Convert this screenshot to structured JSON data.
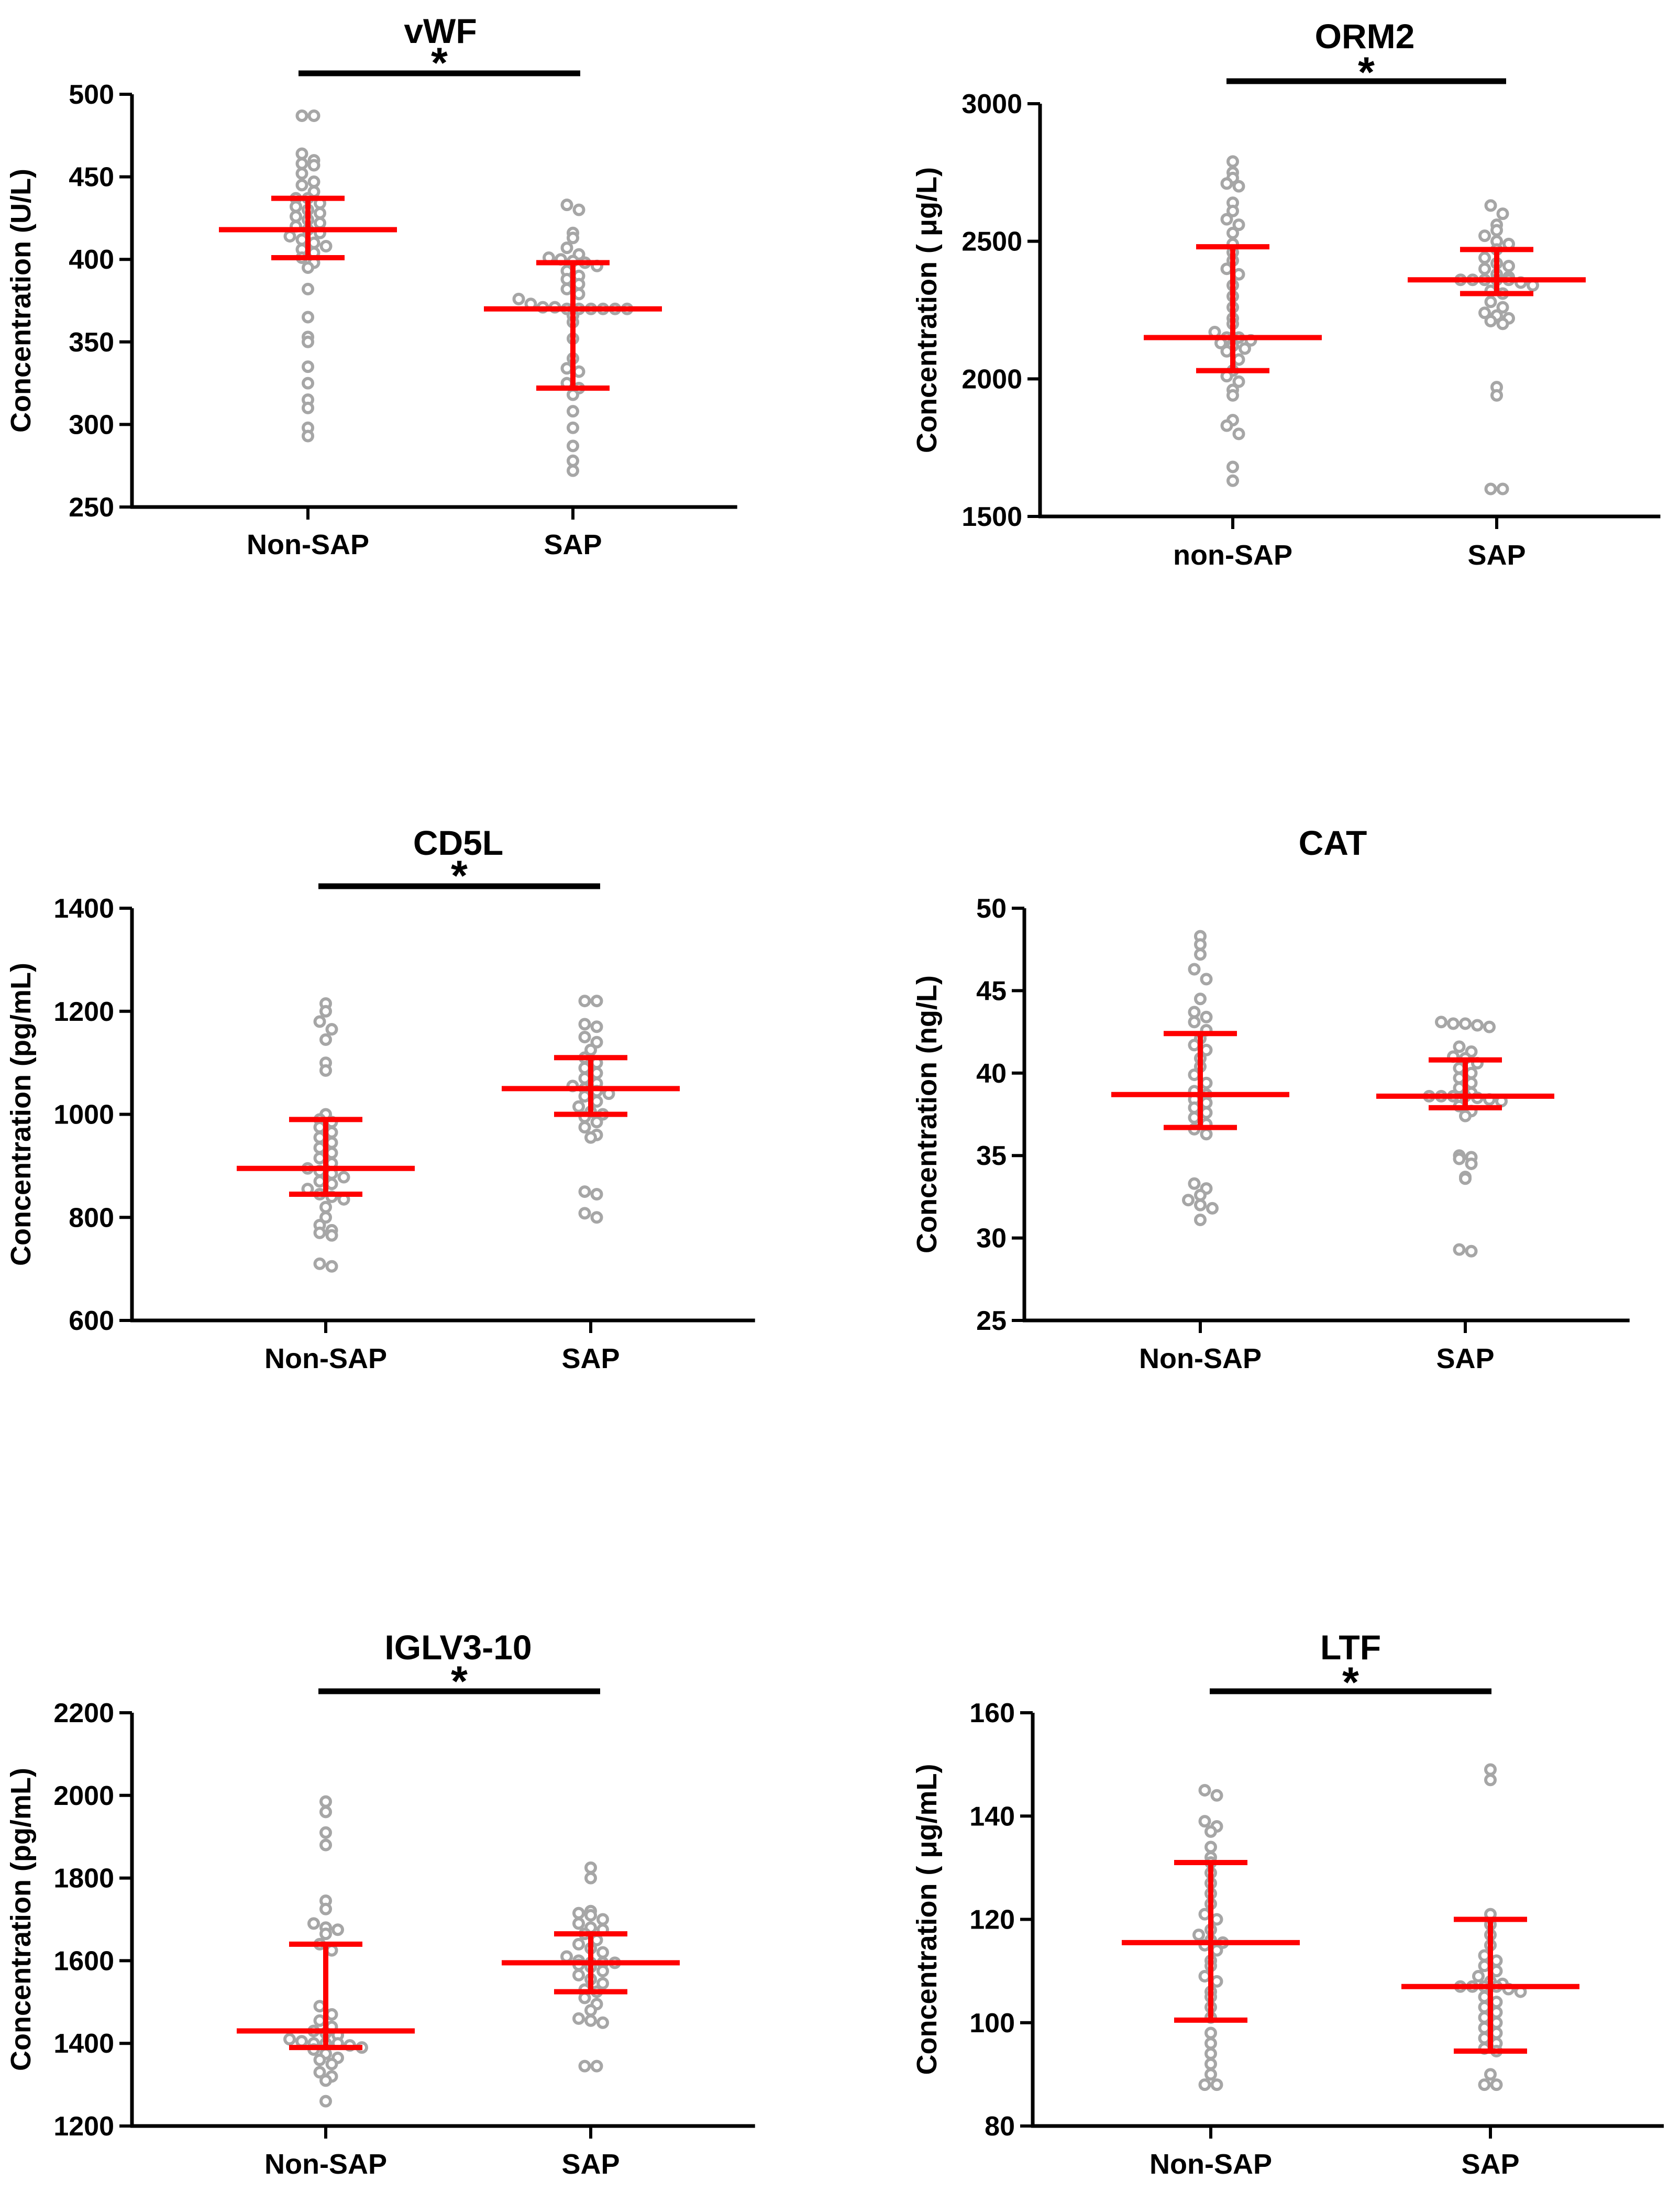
{
  "colors": {
    "axis": "#000000",
    "points": "#a6a6a6",
    "summary": "#ff0000",
    "significance": "#000000"
  },
  "chart_data": [
    {
      "type": "scatter",
      "title": "vWF",
      "ylabel": "Concentration (U/L)",
      "ylim": [
        250,
        500
      ],
      "yticks": [
        250,
        300,
        350,
        400,
        450,
        500
      ],
      "categories": [
        "Non-SAP",
        "SAP"
      ],
      "significance": "*",
      "groups": [
        {
          "name": "Non-SAP",
          "median": 418,
          "q1": 401,
          "q3": 437,
          "points": [
            487,
            487,
            464,
            460,
            458,
            457,
            452,
            447,
            445,
            441,
            437,
            437,
            434,
            432,
            430,
            428,
            426,
            424,
            422,
            420,
            418,
            416,
            414,
            412,
            410,
            408,
            406,
            404,
            401,
            398,
            395,
            382,
            365,
            353,
            350,
            335,
            325,
            315,
            310,
            298,
            293
          ]
        },
        {
          "name": "SAP",
          "median": 370,
          "q1": 322,
          "q3": 398,
          "points": [
            433,
            430,
            416,
            413,
            407,
            403,
            401,
            400,
            399,
            398,
            396,
            393,
            390,
            388,
            385,
            382,
            379,
            376,
            373,
            371,
            371,
            370,
            370,
            370,
            370,
            370,
            370,
            366,
            362,
            352,
            340,
            334,
            332,
            325,
            322,
            318,
            308,
            298,
            287,
            278,
            272
          ]
        }
      ]
    },
    {
      "type": "scatter",
      "title": "ORM2",
      "ylabel": "Concentration ( μg/L)",
      "ylim": [
        1500,
        3000
      ],
      "yticks": [
        1500,
        2000,
        2500,
        3000
      ],
      "categories": [
        "non-SAP",
        "SAP"
      ],
      "significance": "*",
      "groups": [
        {
          "name": "non-SAP",
          "median": 2150,
          "q1": 2030,
          "q3": 2480,
          "points": [
            2790,
            2750,
            2730,
            2710,
            2700,
            2640,
            2610,
            2580,
            2560,
            2530,
            2490,
            2460,
            2430,
            2400,
            2380,
            2340,
            2300,
            2260,
            2220,
            2200,
            2170,
            2150,
            2150,
            2140,
            2130,
            2120,
            2110,
            2100,
            2070,
            2030,
            2010,
            1990,
            1960,
            1940,
            1850,
            1830,
            1800,
            1680,
            1630
          ]
        },
        {
          "name": "SAP",
          "median": 2360,
          "q1": 2310,
          "q3": 2470,
          "points": [
            2630,
            2600,
            2560,
            2540,
            2520,
            2500,
            2490,
            2470,
            2440,
            2420,
            2410,
            2400,
            2380,
            2370,
            2360,
            2360,
            2360,
            2360,
            2360,
            2350,
            2340,
            2320,
            2310,
            2280,
            2260,
            2240,
            2230,
            2220,
            2210,
            2200,
            1970,
            1940,
            1600,
            1600
          ]
        }
      ]
    },
    {
      "type": "scatter",
      "title": "CD5L",
      "ylabel": "Concentration (pg/mL)",
      "ylim": [
        600,
        1400
      ],
      "yticks": [
        600,
        800,
        1000,
        1200,
        1400
      ],
      "categories": [
        "Non-SAP",
        "SAP"
      ],
      "significance": "*",
      "groups": [
        {
          "name": "Non-SAP",
          "median": 895,
          "q1": 845,
          "q3": 990,
          "points": [
            1215,
            1200,
            1180,
            1165,
            1145,
            1100,
            1085,
            1000,
            990,
            985,
            975,
            965,
            955,
            945,
            935,
            925,
            915,
            905,
            895,
            890,
            885,
            878,
            870,
            865,
            855,
            845,
            840,
            835,
            820,
            800,
            785,
            775,
            770,
            765,
            710,
            705
          ]
        },
        {
          "name": "SAP",
          "median": 1050,
          "q1": 1000,
          "q3": 1110,
          "points": [
            1220,
            1220,
            1175,
            1170,
            1150,
            1140,
            1125,
            1110,
            1100,
            1090,
            1080,
            1070,
            1060,
            1055,
            1050,
            1045,
            1040,
            1035,
            1025,
            1015,
            1005,
            1000,
            995,
            985,
            975,
            960,
            955,
            850,
            845,
            808,
            800
          ]
        }
      ]
    },
    {
      "type": "scatter",
      "title": "CAT",
      "ylabel": "Concentration (ng/L)",
      "ylim": [
        25,
        50
      ],
      "yticks": [
        25,
        30,
        35,
        40,
        45,
        50
      ],
      "categories": [
        "Non-SAP",
        "SAP"
      ],
      "significance": "",
      "groups": [
        {
          "name": "Non-SAP",
          "median": 38.7,
          "q1": 36.7,
          "q3": 42.4,
          "points": [
            48.3,
            47.8,
            47.2,
            46.3,
            45.7,
            44.5,
            43.7,
            43.4,
            43.1,
            42.6,
            42.1,
            41.7,
            41.4,
            40.9,
            40.4,
            39.9,
            39.4,
            38.9,
            38.7,
            38.4,
            38.2,
            37.9,
            37.6,
            37.3,
            36.9,
            36.6,
            36.3,
            33.3,
            33.0,
            32.6,
            32.3,
            32.0,
            31.8,
            31.1
          ]
        },
        {
          "name": "SAP",
          "median": 38.6,
          "q1": 37.9,
          "q3": 40.8,
          "points": [
            43.1,
            43.0,
            43.0,
            42.9,
            42.8,
            41.6,
            41.3,
            41.0,
            40.9,
            40.6,
            40.3,
            40.0,
            39.7,
            39.4,
            39.1,
            38.8,
            38.6,
            38.6,
            38.6,
            38.6,
            38.5,
            38.4,
            38.3,
            38.0,
            37.7,
            37.4,
            35.0,
            34.9,
            34.8,
            34.5,
            33.7,
            33.6,
            29.3,
            29.2
          ]
        }
      ]
    },
    {
      "type": "scatter",
      "title": "IGLV3-10",
      "ylabel": "Concentration (pg/mL)",
      "ylim": [
        1200,
        2200
      ],
      "yticks": [
        1200,
        1400,
        1600,
        1800,
        2000,
        2200
      ],
      "categories": [
        "Non-SAP",
        "SAP"
      ],
      "significance": "*",
      "groups": [
        {
          "name": "Non-SAP",
          "median": 1430,
          "q1": 1390,
          "q3": 1640,
          "points": [
            1985,
            1960,
            1910,
            1880,
            1745,
            1725,
            1690,
            1680,
            1675,
            1665,
            1640,
            1625,
            1490,
            1470,
            1455,
            1440,
            1430,
            1425,
            1420,
            1410,
            1405,
            1400,
            1400,
            1400,
            1395,
            1390,
            1385,
            1375,
            1365,
            1360,
            1350,
            1330,
            1320,
            1310,
            1260
          ]
        },
        {
          "name": "SAP",
          "median": 1595,
          "q1": 1525,
          "q3": 1665,
          "points": [
            1825,
            1800,
            1720,
            1715,
            1710,
            1700,
            1690,
            1680,
            1675,
            1665,
            1650,
            1640,
            1630,
            1620,
            1610,
            1600,
            1595,
            1595,
            1595,
            1590,
            1585,
            1575,
            1565,
            1555,
            1545,
            1530,
            1525,
            1510,
            1495,
            1480,
            1460,
            1455,
            1450,
            1345,
            1345
          ]
        }
      ]
    },
    {
      "type": "scatter",
      "title": "LTF",
      "ylabel": "Concentration ( μg/mL)",
      "ylim": [
        80,
        160
      ],
      "yticks": [
        80,
        100,
        120,
        140,
        160
      ],
      "categories": [
        "Non-SAP",
        "SAP"
      ],
      "significance": "*",
      "groups": [
        {
          "name": "Non-SAP",
          "median": 115.5,
          "q1": 100.5,
          "q3": 131,
          "points": [
            145,
            144,
            139,
            138,
            137,
            134,
            132,
            131,
            129,
            127,
            125,
            123,
            121,
            120,
            118,
            117,
            116,
            115.5,
            115,
            114,
            112,
            111,
            109,
            108,
            106,
            105,
            103,
            101,
            98,
            96,
            94,
            92,
            90,
            88,
            88
          ]
        },
        {
          "name": "SAP",
          "median": 107,
          "q1": 94.5,
          "q3": 120,
          "points": [
            149,
            147,
            121,
            119,
            117,
            115,
            113,
            112,
            111,
            110,
            109,
            108,
            107.5,
            107,
            107,
            107,
            107,
            106.5,
            106,
            105,
            104,
            103,
            102,
            101,
            100,
            99,
            98,
            97,
            96,
            95,
            94.5,
            90,
            88,
            88
          ]
        }
      ]
    }
  ]
}
